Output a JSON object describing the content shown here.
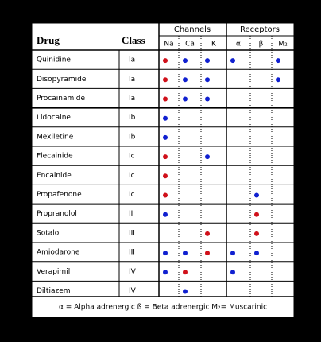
{
  "header": {
    "drug": "Drug",
    "class": "Class",
    "groups": [
      "Channels",
      "Receptors"
    ],
    "columns": [
      "Na",
      "Ca",
      "K",
      "α",
      "β",
      "M₂"
    ]
  },
  "table": {
    "rows": [
      {
        "drug": "Quinidine",
        "class": "Ia",
        "effects": [
          "red",
          "blue",
          "blue",
          "blue",
          null,
          "blue"
        ]
      },
      {
        "drug": "Disopyramide",
        "class": "Ia",
        "effects": [
          "red",
          "blue",
          "blue",
          null,
          null,
          "blue"
        ]
      },
      {
        "drug": "Procainamide",
        "class": "Ia",
        "effects": [
          "red",
          "blue",
          "blue",
          null,
          null,
          null
        ]
      },
      {
        "drug": "Lidocaine",
        "class": "Ib",
        "effects": [
          "blue",
          null,
          null,
          null,
          null,
          null
        ]
      },
      {
        "drug": "Mexiletine",
        "class": "Ib",
        "effects": [
          "blue",
          null,
          null,
          null,
          null,
          null
        ]
      },
      {
        "drug": "Flecainide",
        "class": "Ic",
        "effects": [
          "red",
          null,
          "blue",
          null,
          null,
          null
        ]
      },
      {
        "drug": "Encainide",
        "class": "Ic",
        "effects": [
          "red",
          null,
          null,
          null,
          null,
          null
        ]
      },
      {
        "drug": "Propafenone",
        "class": "Ic",
        "effects": [
          "red",
          null,
          null,
          null,
          "blue",
          null
        ]
      },
      {
        "drug": "Propranolol",
        "class": "II",
        "effects": [
          "blue",
          null,
          null,
          null,
          "red",
          null
        ]
      },
      {
        "drug": "Sotalol",
        "class": "III",
        "effects": [
          null,
          null,
          "red",
          null,
          "red",
          null
        ]
      },
      {
        "drug": "Amiodarone",
        "class": "III",
        "effects": [
          "blue",
          "blue",
          "red",
          "blue",
          "blue",
          null
        ]
      },
      {
        "drug": "Verapimil",
        "class": "IV",
        "effects": [
          "blue",
          "red",
          null,
          "blue",
          null,
          null
        ]
      },
      {
        "drug": "Diltiazem",
        "class": "IV",
        "effects": [
          null,
          "blue",
          null,
          null,
          null,
          null
        ]
      }
    ]
  },
  "footer": "α = Alpha adrenergic   ß = Beta adrenergic   M₂= Muscarinic"
}
